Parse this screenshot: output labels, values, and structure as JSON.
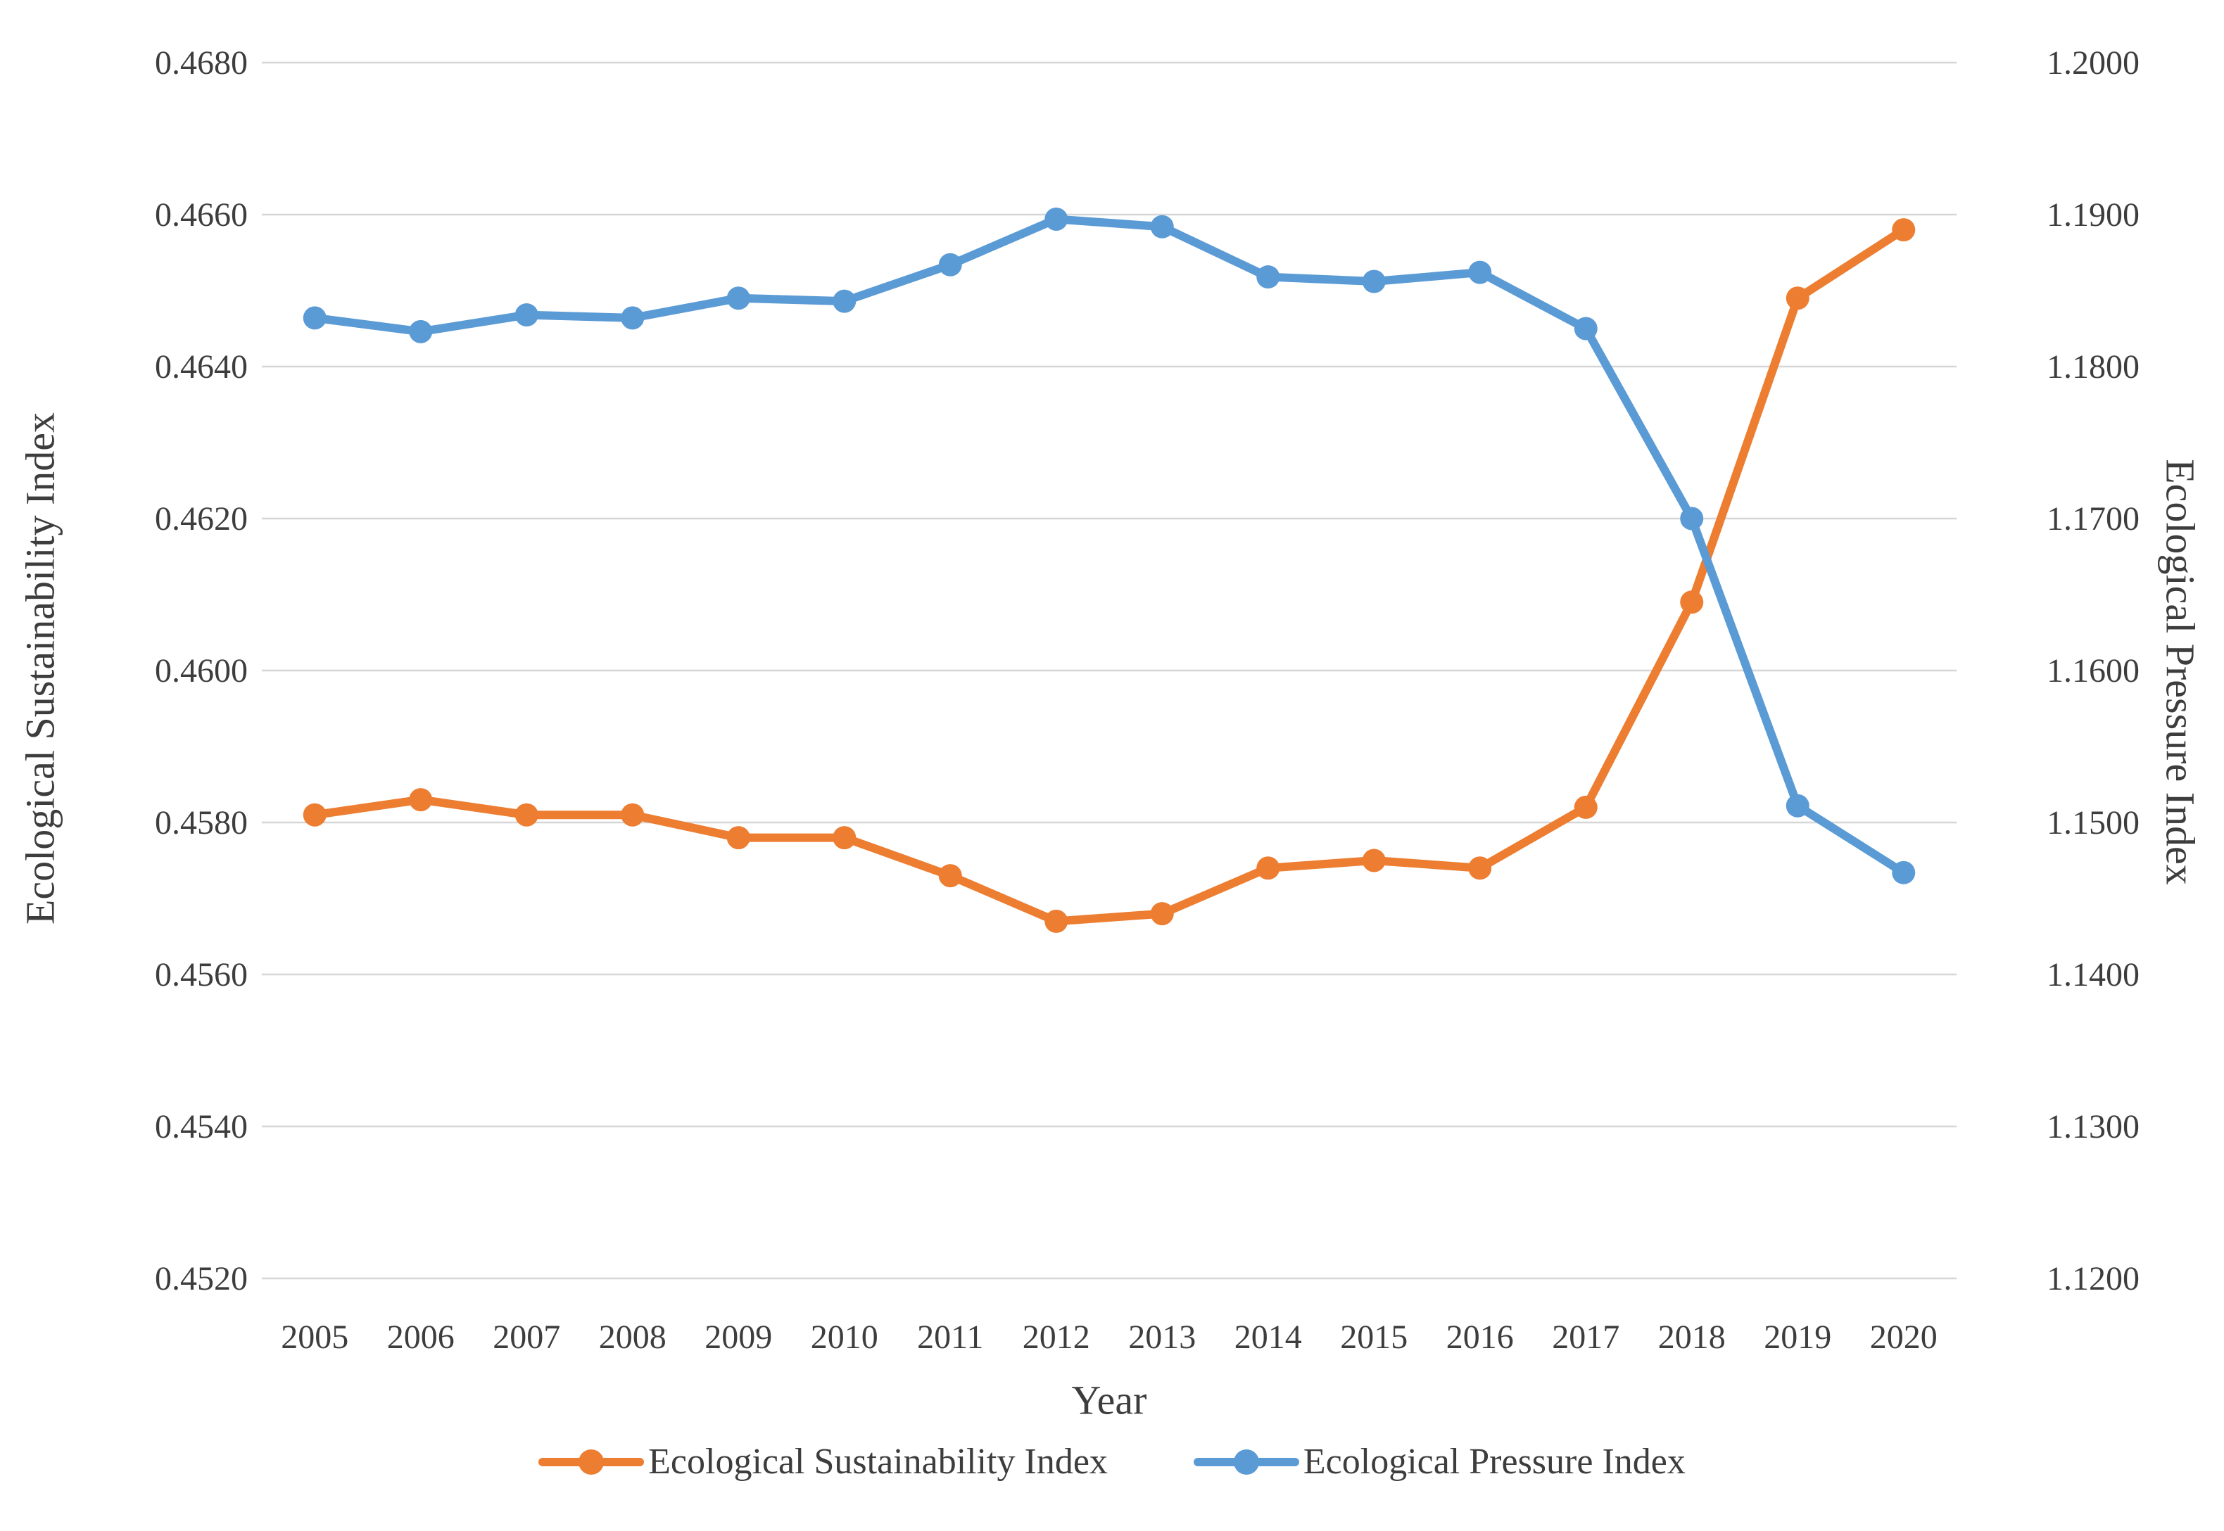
{
  "chart_data": {
    "type": "line",
    "title": "",
    "categories": [
      "2005",
      "2006",
      "2007",
      "2008",
      "2009",
      "2010",
      "2011",
      "2012",
      "2013",
      "2014",
      "2015",
      "2016",
      "2017",
      "2018",
      "2019",
      "2020"
    ],
    "series": [
      {
        "name": "Ecological Sustainability Index",
        "axis": "left",
        "color": "#ED7D31",
        "values": [
          0.4581,
          0.4583,
          0.4581,
          0.4581,
          0.4578,
          0.4578,
          0.4573,
          0.4567,
          0.4568,
          0.4574,
          0.4575,
          0.4574,
          0.4582,
          0.4609,
          0.4649,
          0.4658
        ]
      },
      {
        "name": "Ecological Pressure Index",
        "axis": "right",
        "color": "#5B9BD5",
        "values": [
          1.1832,
          1.1823,
          1.1834,
          1.1832,
          1.1845,
          1.1843,
          1.1867,
          1.1897,
          1.1892,
          1.1859,
          1.1856,
          1.1862,
          1.1825,
          1.17,
          1.1511,
          1.1467
        ]
      }
    ],
    "left_axis": {
      "title": "Ecological Sustainability Index",
      "min": 0.452,
      "max": 0.468,
      "step": 0.002,
      "tick_labels": [
        "0.4520",
        "0.4540",
        "0.4560",
        "0.4580",
        "0.4600",
        "0.4620",
        "0.4640",
        "0.4660",
        "0.4680"
      ]
    },
    "right_axis": {
      "title": "Ecological Pressure Index",
      "min": 1.12,
      "max": 1.2,
      "step": 0.01,
      "tick_labels": [
        "1.1200",
        "1.1300",
        "1.1400",
        "1.1500",
        "1.1600",
        "1.1700",
        "1.1800",
        "1.1900",
        "1.2000"
      ]
    },
    "x_axis": {
      "title": "Year"
    },
    "grid": true,
    "legend_position": "bottom",
    "grid_color": "#D6D6D6",
    "text_color": "#3d3d3d"
  }
}
